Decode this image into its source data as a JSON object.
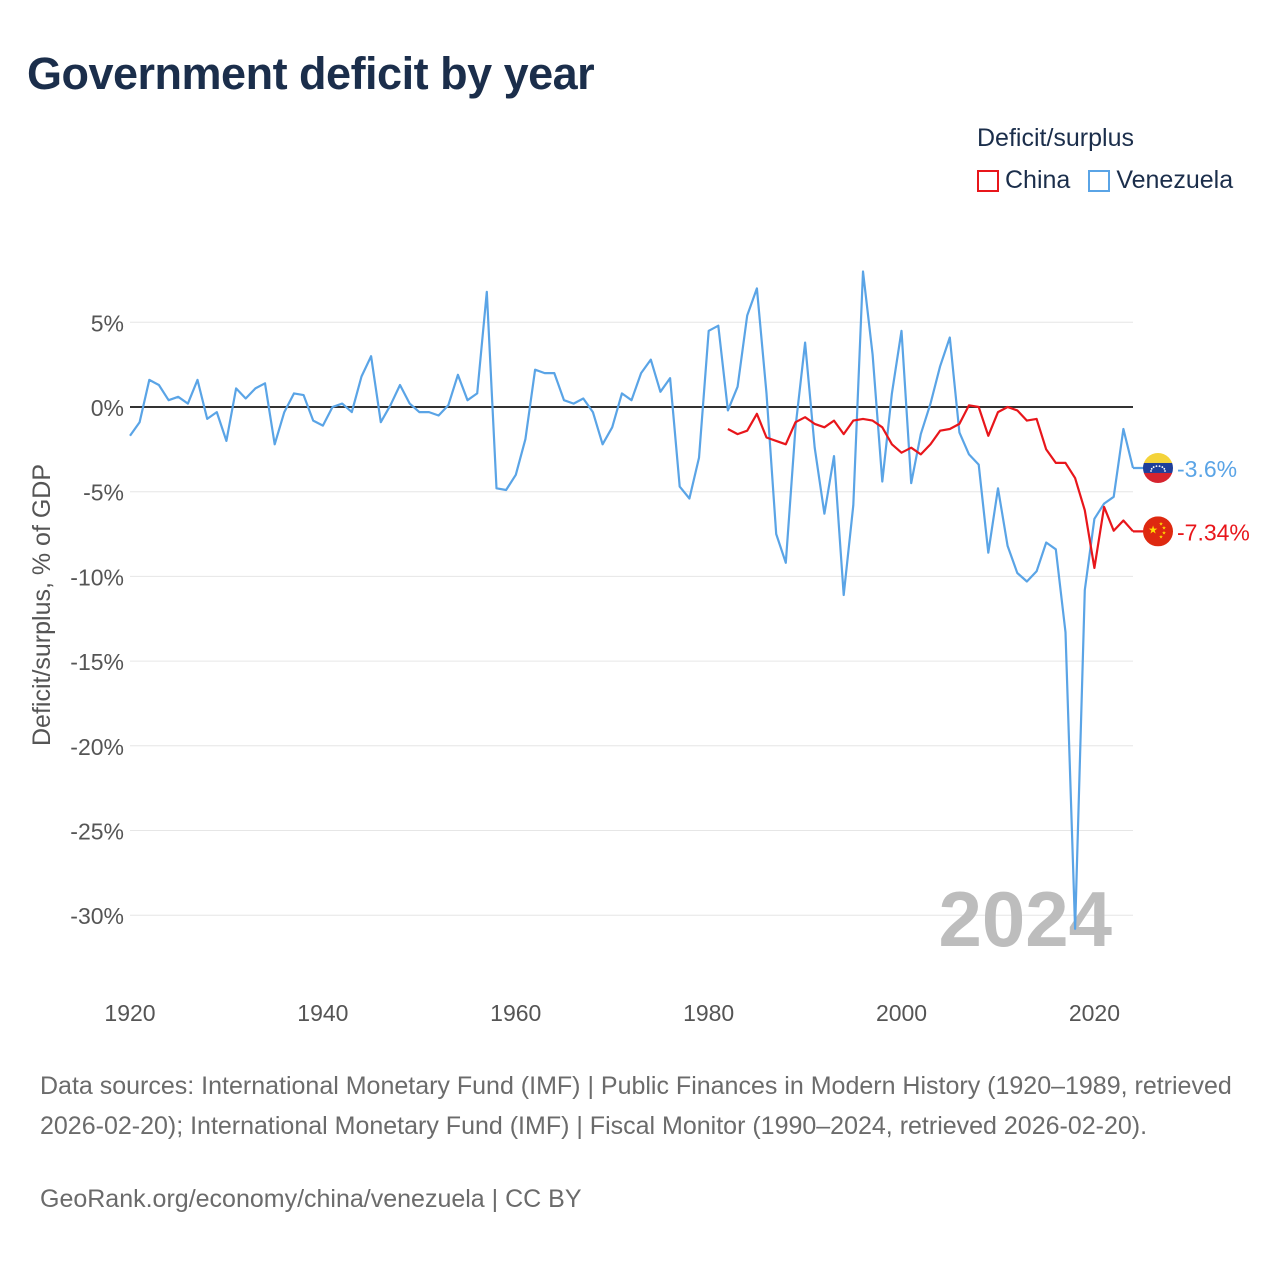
{
  "header": {
    "title": "Government deficit by year"
  },
  "legend": {
    "title": "Deficit/surplus",
    "items": [
      {
        "label": "China",
        "color": "#e8161b"
      },
      {
        "label": "Venezuela",
        "color": "#5aa4e6"
      }
    ]
  },
  "footer": {
    "sources": "Data sources: International Monetary Fund (IMF) | Public Finances in Modern History (1920–1989, retrieved 2026-02-20); International Monetary Fund (IMF) | Fiscal Monitor (1990–2024, retrieved 2026-02-20).",
    "credit": "GeoRank.org/economy/china/venezuela | CC BY"
  },
  "chart_data": {
    "type": "line",
    "title": "Government deficit by year",
    "ylabel": "Deficit/surplus, % of GDP",
    "xlabel": "",
    "xlim": [
      1920,
      2024
    ],
    "ylim": [
      -33,
      9
    ],
    "x_ticks": [
      1920,
      1940,
      1960,
      1980,
      2000,
      2020
    ],
    "x_tick_labels": [
      "1920",
      "1940",
      "1960",
      "1980",
      "2000",
      "2020"
    ],
    "y_ticks": [
      5,
      0,
      -5,
      -10,
      -15,
      -20,
      -25,
      -30
    ],
    "y_tick_labels": [
      "5%",
      "0%",
      "-5%",
      "-10%",
      "-15%",
      "-20%",
      "-25%",
      "-30%"
    ],
    "year_watermark": "2024",
    "series": [
      {
        "name": "Venezuela",
        "color": "#5aa4e6",
        "end_label": "-3.6%",
        "flag": "venezuela",
        "x": [
          1920,
          1921,
          1922,
          1923,
          1924,
          1925,
          1926,
          1927,
          1928,
          1929,
          1930,
          1931,
          1932,
          1933,
          1934,
          1935,
          1936,
          1937,
          1938,
          1939,
          1940,
          1941,
          1942,
          1943,
          1944,
          1945,
          1946,
          1947,
          1948,
          1949,
          1950,
          1951,
          1952,
          1953,
          1954,
          1955,
          1956,
          1957,
          1958,
          1959,
          1960,
          1961,
          1962,
          1963,
          1964,
          1965,
          1966,
          1967,
          1968,
          1969,
          1970,
          1971,
          1972,
          1973,
          1974,
          1975,
          1976,
          1977,
          1978,
          1979,
          1980,
          1981,
          1982,
          1983,
          1984,
          1985,
          1986,
          1987,
          1988,
          1989,
          1990,
          1991,
          1992,
          1993,
          1994,
          1995,
          1996,
          1997,
          1998,
          1999,
          2000,
          2001,
          2002,
          2003,
          2004,
          2005,
          2006,
          2007,
          2008,
          2009,
          2010,
          2011,
          2012,
          2013,
          2014,
          2015,
          2016,
          2017,
          2018,
          2019,
          2020,
          2021,
          2022,
          2023,
          2024
        ],
        "values": [
          -1.7,
          -0.9,
          1.6,
          1.3,
          0.4,
          0.6,
          0.2,
          1.6,
          -0.7,
          -0.3,
          -2.0,
          1.1,
          0.5,
          1.1,
          1.4,
          -2.2,
          -0.3,
          0.8,
          0.7,
          -0.8,
          -1.1,
          0.0,
          0.2,
          -0.3,
          1.8,
          3.0,
          -0.9,
          0.1,
          1.3,
          0.2,
          -0.3,
          -0.3,
          -0.5,
          0.1,
          1.9,
          0.4,
          0.8,
          6.8,
          -4.8,
          -4.9,
          -4.0,
          -1.9,
          2.2,
          2.0,
          2.0,
          0.4,
          0.2,
          0.5,
          -0.3,
          -2.2,
          -1.2,
          0.8,
          0.4,
          2.0,
          2.8,
          0.9,
          1.7,
          -4.7,
          -5.4,
          -3.0,
          4.5,
          4.8,
          -0.2,
          1.2,
          5.4,
          7.0,
          0.8,
          -7.5,
          -9.2,
          -1.2,
          3.8,
          -2.4,
          -6.3,
          -2.9,
          -11.1,
          -5.8,
          8.0,
          3.1,
          -4.4,
          0.8,
          4.5,
          -4.5,
          -1.6,
          0.2,
          2.4,
          4.1,
          -1.5,
          -2.8,
          -3.4,
          -8.6,
          -4.8,
          -8.2,
          -9.8,
          -10.3,
          -9.7,
          -8.0,
          -8.4,
          -13.3,
          -30.8,
          -10.8,
          -6.6,
          -5.7,
          -5.3,
          -1.3,
          -3.6
        ]
      },
      {
        "name": "China",
        "color": "#e8161b",
        "end_label": "-7.34%",
        "flag": "china",
        "x": [
          1982,
          1983,
          1984,
          1985,
          1986,
          1987,
          1988,
          1989,
          1990,
          1991,
          1992,
          1993,
          1994,
          1995,
          1996,
          1997,
          1998,
          1999,
          2000,
          2001,
          2002,
          2003,
          2004,
          2005,
          2006,
          2007,
          2008,
          2009,
          2010,
          2011,
          2012,
          2013,
          2014,
          2015,
          2016,
          2017,
          2018,
          2019,
          2020,
          2021,
          2022,
          2023,
          2024
        ],
        "values": [
          -1.3,
          -1.6,
          -1.4,
          -0.4,
          -1.8,
          -2.0,
          -2.2,
          -0.9,
          -0.6,
          -1.0,
          -1.2,
          -0.8,
          -1.6,
          -0.8,
          -0.7,
          -0.8,
          -1.2,
          -2.2,
          -2.7,
          -2.4,
          -2.8,
          -2.2,
          -1.4,
          -1.3,
          -1.0,
          0.1,
          0.0,
          -1.7,
          -0.3,
          0.0,
          -0.2,
          -0.8,
          -0.7,
          -2.5,
          -3.3,
          -3.3,
          -4.2,
          -6.1,
          -9.5,
          -5.9,
          -7.3,
          -6.7,
          -7.34
        ]
      }
    ]
  }
}
